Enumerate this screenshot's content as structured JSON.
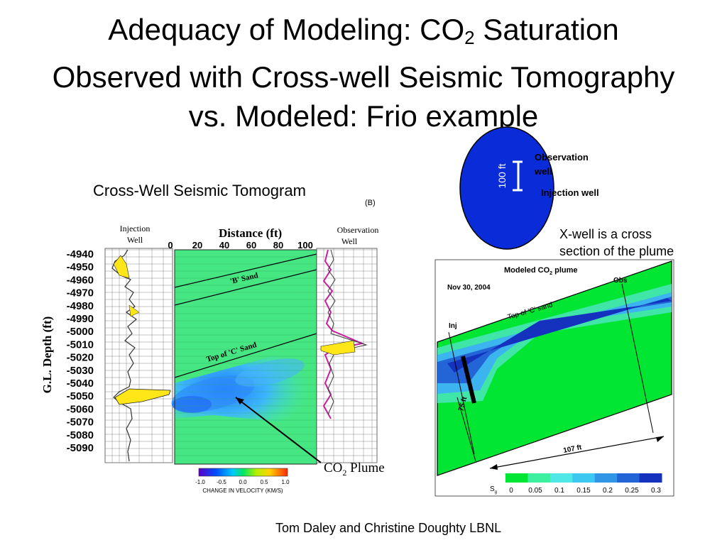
{
  "slide": {
    "title_prefix": "Adequacy of Modeling: CO",
    "title_sub": "2",
    "title_line1_suffix": " Saturation",
    "title_line2": "Observed with Cross-well Seismic Tomography",
    "title_line3": "vs. Modeled: Frio example",
    "footer": "Tom Daley and Christine Doughty  LBNL"
  },
  "tomogram": {
    "heading": "Cross-Well Seismic Tomogram",
    "panel_label": "(B)",
    "injection_well_line1": "Injection",
    "injection_well_line2": "Well",
    "observation_well_line1": "Observation",
    "observation_well_line2": "Well",
    "distance_label": "Distance (ft)",
    "depth_label": "G.L. Depth (ft)",
    "distance_ticks": [
      "0",
      "20",
      "40",
      "60",
      "80",
      "100"
    ],
    "depth_ticks": [
      "-4940",
      "-4950",
      "-4960",
      "-4970",
      "-4980",
      "-4990",
      "-5000",
      "-5010",
      "-5020",
      "-5030",
      "-5040",
      "-5050",
      "-5060",
      "-5070",
      "-5080",
      "-5090"
    ],
    "b_sand_label": "'B' Sand",
    "c_sand_label": "Top of 'C' Sand",
    "plume_label_prefix": "CO",
    "plume_label_sub": "2",
    "plume_label_suffix": " Plume",
    "colorbar_ticks": [
      "-1.0",
      "-0.5",
      "0.0",
      "0.5",
      "1.0"
    ],
    "colorbar_caption": "CHANGE IN VELOCITY (KM/S)"
  },
  "well_map": {
    "scale_label": "100 ft",
    "observation_label_line1": "Observation",
    "observation_label_line2": "well",
    "injection_label": "Injection well",
    "circle_color": "#0a2bd8",
    "note_line1": "X-well is a cross",
    "note_line2": "section of the plume"
  },
  "model": {
    "title_prefix": "Modeled CO",
    "title_sub": "2",
    "title_suffix": " plume",
    "date": "Nov 30, 2004",
    "obs_label": "Obs",
    "inj_label": "Inj",
    "top_c_sand_label": "Top of 'C' sand",
    "height_label": "75 ft",
    "width_label": "107 ft",
    "colorbar_label": "S",
    "colorbar_label_sub": "g",
    "colorbar_ticks": [
      "0",
      "0.05",
      "0.1",
      "0.15",
      "0.2",
      "0.25",
      "0.3"
    ],
    "colorbar_colors": [
      "#00e632",
      "#3cf0a0",
      "#50e8e6",
      "#3cc8f0",
      "#3296e6",
      "#2364d7",
      "#1432be"
    ]
  }
}
